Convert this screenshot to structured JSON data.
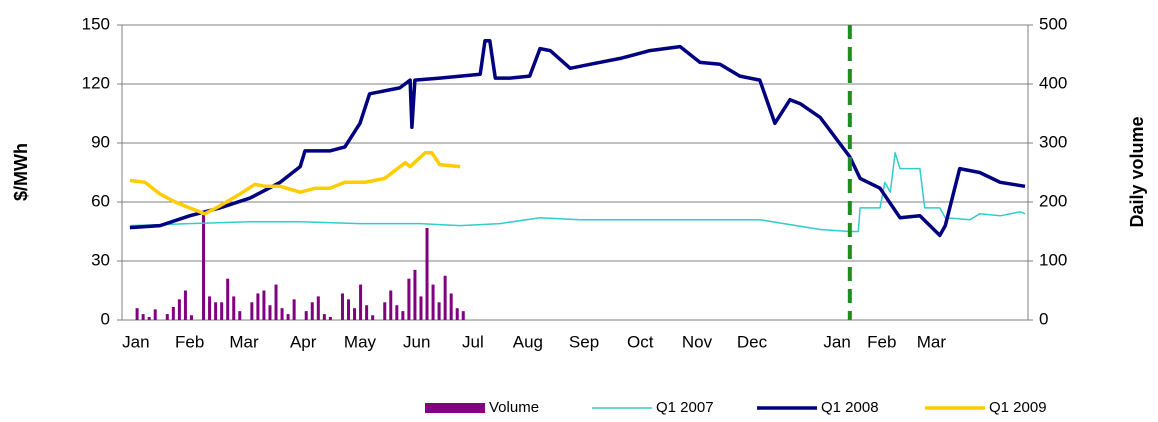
{
  "chart_data": {
    "type": "line",
    "y_axis_label": "$/MWh",
    "y2_axis_label": "Daily volume",
    "xlim": [
      0,
      15
    ],
    "xticks": [
      {
        "value": 0.23,
        "label": "Jan"
      },
      {
        "value": 1.12,
        "label": "Feb"
      },
      {
        "value": 2.02,
        "label": "Mar"
      },
      {
        "value": 3.0,
        "label": "Apr"
      },
      {
        "value": 3.94,
        "label": "May"
      },
      {
        "value": 4.88,
        "label": "Jun"
      },
      {
        "value": 5.81,
        "label": "Jul"
      },
      {
        "value": 6.72,
        "label": "Aug"
      },
      {
        "value": 7.65,
        "label": "Sep"
      },
      {
        "value": 8.58,
        "label": "Oct"
      },
      {
        "value": 9.52,
        "label": "Nov"
      },
      {
        "value": 10.43,
        "label": "Dec"
      },
      {
        "value": 11.84,
        "label": "Jan"
      },
      {
        "value": 12.58,
        "label": "Feb"
      },
      {
        "value": 13.4,
        "label": "Mar"
      }
    ],
    "ylim": [
      0,
      150
    ],
    "yticks": [
      0,
      30,
      60,
      90,
      120,
      150
    ],
    "y2lim": [
      0,
      500
    ],
    "y2ticks": [
      0,
      100,
      200,
      300,
      400,
      500
    ],
    "grid": true,
    "legend": "bottom",
    "vline": {
      "x": 12.05,
      "color": "#1e8c1e"
    },
    "series": [
      {
        "name": "Volume",
        "color": "#800080",
        "type": "bar",
        "axis": "y2",
        "x": [
          0.25,
          0.35,
          0.45,
          0.55,
          0.65,
          0.75,
          0.85,
          0.95,
          1.05,
          1.15,
          1.25,
          1.35,
          1.45,
          1.55,
          1.65,
          1.75,
          1.85,
          1.95,
          2.05,
          2.15,
          2.25,
          2.35,
          2.45,
          2.55,
          2.65,
          2.75,
          2.85,
          2.95,
          3.05,
          3.15,
          3.25,
          3.35,
          3.45,
          3.55,
          3.65,
          3.75,
          3.85,
          3.95,
          4.05,
          4.15,
          4.25,
          4.35,
          4.45,
          4.55,
          4.65,
          4.75,
          4.85,
          4.95,
          5.05,
          5.15,
          5.25,
          5.35,
          5.45,
          5.55,
          5.65
        ],
        "values": [
          20,
          10,
          5,
          18,
          0,
          10,
          22,
          35,
          50,
          8,
          0,
          178,
          40,
          30,
          30,
          70,
          40,
          15,
          0,
          30,
          45,
          50,
          25,
          60,
          20,
          10,
          35,
          0,
          15,
          30,
          40,
          10,
          5,
          0,
          45,
          35,
          20,
          60,
          25,
          8,
          0,
          30,
          50,
          25,
          15,
          70,
          85,
          40,
          156,
          60,
          30,
          75,
          45,
          20,
          15
        ]
      },
      {
        "name": "Q1 2007",
        "color": "#33cccc",
        "type": "line",
        "width": 1.5,
        "x": [
          0.13,
          1.12,
          2.12,
          2.95,
          3.94,
          4.93,
          5.6,
          6.26,
          6.92,
          7.58,
          8.74,
          10.56,
          11.56,
          12.05,
          12.19,
          12.22,
          12.55,
          12.63,
          12.72,
          12.8,
          12.88,
          13.21,
          13.29,
          13.54,
          13.63,
          14.04,
          14.2,
          14.54,
          14.87,
          14.95
        ],
        "values": [
          48,
          49,
          50,
          50,
          49,
          49,
          48,
          49,
          52,
          51,
          51,
          51,
          46,
          45,
          45,
          57,
          57,
          70,
          65,
          85,
          77,
          77,
          57,
          57,
          52,
          51,
          54,
          53,
          55,
          54
        ]
      },
      {
        "name": "Q1 2008",
        "color": "#000080",
        "type": "line",
        "width": 3.5,
        "x": [
          0.13,
          0.63,
          1.12,
          1.62,
          2.12,
          2.62,
          2.95,
          3.03,
          3.44,
          3.69,
          3.94,
          4.1,
          4.6,
          4.77,
          4.8,
          4.85,
          5.26,
          5.93,
          6.01,
          6.09,
          6.18,
          6.42,
          6.75,
          6.92,
          7.09,
          7.42,
          7.75,
          8.25,
          8.74,
          9.24,
          9.57,
          9.9,
          10.23,
          10.56,
          10.81,
          11.06,
          11.23,
          11.56,
          12.05,
          12.22,
          12.55,
          12.88,
          13.21,
          13.54,
          13.63,
          13.87,
          14.2,
          14.54,
          14.95
        ],
        "values": [
          47,
          48,
          53,
          57,
          62,
          70,
          78,
          86,
          86,
          88,
          100,
          115,
          118,
          122,
          98,
          122,
          123,
          125,
          142,
          142,
          123,
          123,
          124,
          138,
          137,
          128,
          130,
          133,
          137,
          139,
          131,
          130,
          124,
          122,
          100,
          112,
          110,
          103,
          83,
          72,
          67,
          52,
          53,
          43,
          48,
          77,
          75,
          70,
          68
        ]
      },
      {
        "name": "Q1 2009",
        "color": "#ffcc00",
        "type": "line",
        "width": 3.5,
        "x": [
          0.13,
          0.38,
          0.63,
          0.88,
          1.12,
          1.37,
          1.62,
          1.95,
          2.2,
          2.37,
          2.62,
          2.95,
          3.2,
          3.44,
          3.69,
          4.02,
          4.35,
          4.52,
          4.69,
          4.77,
          5.02,
          5.13,
          5.26,
          5.6
        ],
        "values": [
          71,
          70,
          64,
          60,
          57,
          54,
          58,
          64,
          69,
          68,
          68,
          65,
          67,
          67,
          70,
          70,
          72,
          76,
          80,
          78,
          85,
          85,
          79,
          78
        ]
      }
    ]
  }
}
